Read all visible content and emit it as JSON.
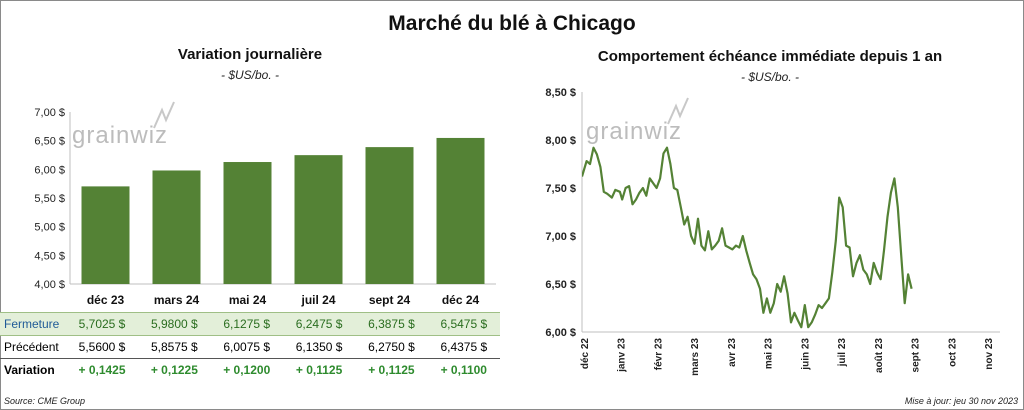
{
  "title": "Marché du blé à Chicago",
  "left": {
    "title": "Variation  journalière",
    "unit": "- $US/bo. -",
    "watermark": "grainwiz"
  },
  "right": {
    "title": "Comportement  échéance  immédiate  depuis 1 an",
    "unit": "- $US/bo. -",
    "watermark": "grainwiz"
  },
  "table": {
    "rows": [
      {
        "label": "Fermeture",
        "values": [
          "5,7025  $",
          "5,9800  $",
          "6,1275  $",
          "6,2475  $",
          "6,3875  $",
          "6,5475  $"
        ]
      },
      {
        "label": "Précédent",
        "values": [
          "5,5600  $",
          "5,8575  $",
          "6,0075  $",
          "6,1350  $",
          "6,2750  $",
          "6,4375  $"
        ]
      },
      {
        "label": "Variation",
        "values": [
          "+ 0,1425",
          "+ 0,1225",
          "+ 0,1200",
          "+ 0,1125",
          "+ 0,1125",
          "+ 0,1100"
        ]
      }
    ]
  },
  "footer": {
    "source": "Source: CME Group",
    "updated": "Mise à jour: jeu 30 nov 2023"
  },
  "colors": {
    "bar": "#548235",
    "line": "#548235"
  },
  "chart_data": [
    {
      "type": "bar",
      "categories": [
        "déc 23",
        "mars 24",
        "mai 24",
        "juil 24",
        "sept 24",
        "déc 24"
      ],
      "values": [
        5.7025,
        5.98,
        6.1275,
        6.2475,
        6.3875,
        6.5475
      ],
      "ylim": [
        4.0,
        7.0
      ],
      "yticks": [
        "4,00 $",
        "4,50 $",
        "5,00 $",
        "5,50 $",
        "6,00 $",
        "6,50 $",
        "7,00 $"
      ],
      "grid": false
    },
    {
      "type": "line",
      "ylim": [
        6.0,
        8.5
      ],
      "yticks": [
        "6,00 $",
        "6,50 $",
        "7,00 $",
        "7,50 $",
        "8,00 $",
        "8,50 $"
      ],
      "xticks": [
        "déc 22",
        "janv 23",
        "févr 23",
        "mars 23",
        "avr 23",
        "mai 23",
        "juin 23",
        "juil 23",
        "août 23",
        "sept 23",
        "oct 23",
        "nov 23"
      ],
      "x": [
        "2022-12-01",
        "2022-12-05",
        "2022-12-08",
        "2022-12-11",
        "2022-12-14",
        "2022-12-17",
        "2022-12-20",
        "2022-12-23",
        "2022-12-27",
        "2022-12-30",
        "2023-01-03",
        "2023-01-05",
        "2023-01-08",
        "2023-01-11",
        "2023-01-14",
        "2023-01-17",
        "2023-01-20",
        "2023-01-23",
        "2023-01-26",
        "2023-01-29",
        "2023-02-01",
        "2023-02-04",
        "2023-02-07",
        "2023-02-10",
        "2023-02-13",
        "2023-02-16",
        "2023-02-19",
        "2023-02-22",
        "2023-02-25",
        "2023-02-28",
        "2023-03-03",
        "2023-03-06",
        "2023-03-09",
        "2023-03-12",
        "2023-03-15",
        "2023-03-18",
        "2023-03-21",
        "2023-03-24",
        "2023-03-27",
        "2023-03-30",
        "2023-04-02",
        "2023-04-05",
        "2023-04-08",
        "2023-04-11",
        "2023-04-14",
        "2023-04-17",
        "2023-04-20",
        "2023-04-23",
        "2023-04-26",
        "2023-04-29",
        "2023-05-02",
        "2023-05-05",
        "2023-05-08",
        "2023-05-11",
        "2023-05-14",
        "2023-05-17",
        "2023-05-20",
        "2023-05-23",
        "2023-05-26",
        "2023-05-29",
        "2023-06-01",
        "2023-06-04",
        "2023-06-07",
        "2023-06-10",
        "2023-06-13",
        "2023-06-16",
        "2023-06-19",
        "2023-06-22",
        "2023-06-25",
        "2023-06-28",
        "2023-07-01",
        "2023-07-04",
        "2023-07-07",
        "2023-07-10",
        "2023-07-13",
        "2023-07-16",
        "2023-07-19",
        "2023-07-22",
        "2023-07-25",
        "2023-07-28",
        "2023-07-31",
        "2023-08-03",
        "2023-08-06",
        "2023-08-09",
        "2023-08-12",
        "2023-08-15",
        "2023-08-18",
        "2023-08-21",
        "2023-08-24",
        "2023-08-27",
        "2023-08-30",
        "2023-09-02",
        "2023-09-05",
        "2023-09-08",
        "2023-09-11",
        "2023-09-14"
      ],
      "y": [
        7.62,
        7.78,
        7.75,
        7.92,
        7.85,
        7.72,
        7.46,
        7.44,
        7.4,
        7.48,
        7.46,
        7.38,
        7.5,
        7.52,
        7.33,
        7.38,
        7.45,
        7.5,
        7.42,
        7.6,
        7.55,
        7.5,
        7.6,
        7.86,
        7.92,
        7.75,
        7.5,
        7.48,
        7.3,
        7.12,
        7.2,
        7.0,
        6.92,
        7.18,
        6.9,
        6.85,
        7.05,
        6.86,
        6.9,
        6.95,
        7.08,
        6.9,
        6.88,
        6.86,
        6.9,
        6.88,
        7.0,
        6.85,
        6.72,
        6.6,
        6.55,
        6.45,
        6.2,
        6.35,
        6.2,
        6.3,
        6.5,
        6.42,
        6.58,
        6.4,
        6.1,
        6.2,
        6.12,
        6.05,
        6.28,
        6.05,
        6.1,
        6.18,
        6.28,
        6.25,
        6.3,
        6.35,
        6.62,
        6.95,
        7.4,
        7.3,
        6.9,
        6.88,
        6.58,
        6.72,
        6.8,
        6.65,
        6.6,
        6.5,
        6.72,
        6.62,
        6.55,
        6.85,
        7.2,
        7.45,
        7.6,
        7.3,
        6.8,
        6.3,
        6.6,
        6.45
      ]
    }
  ]
}
